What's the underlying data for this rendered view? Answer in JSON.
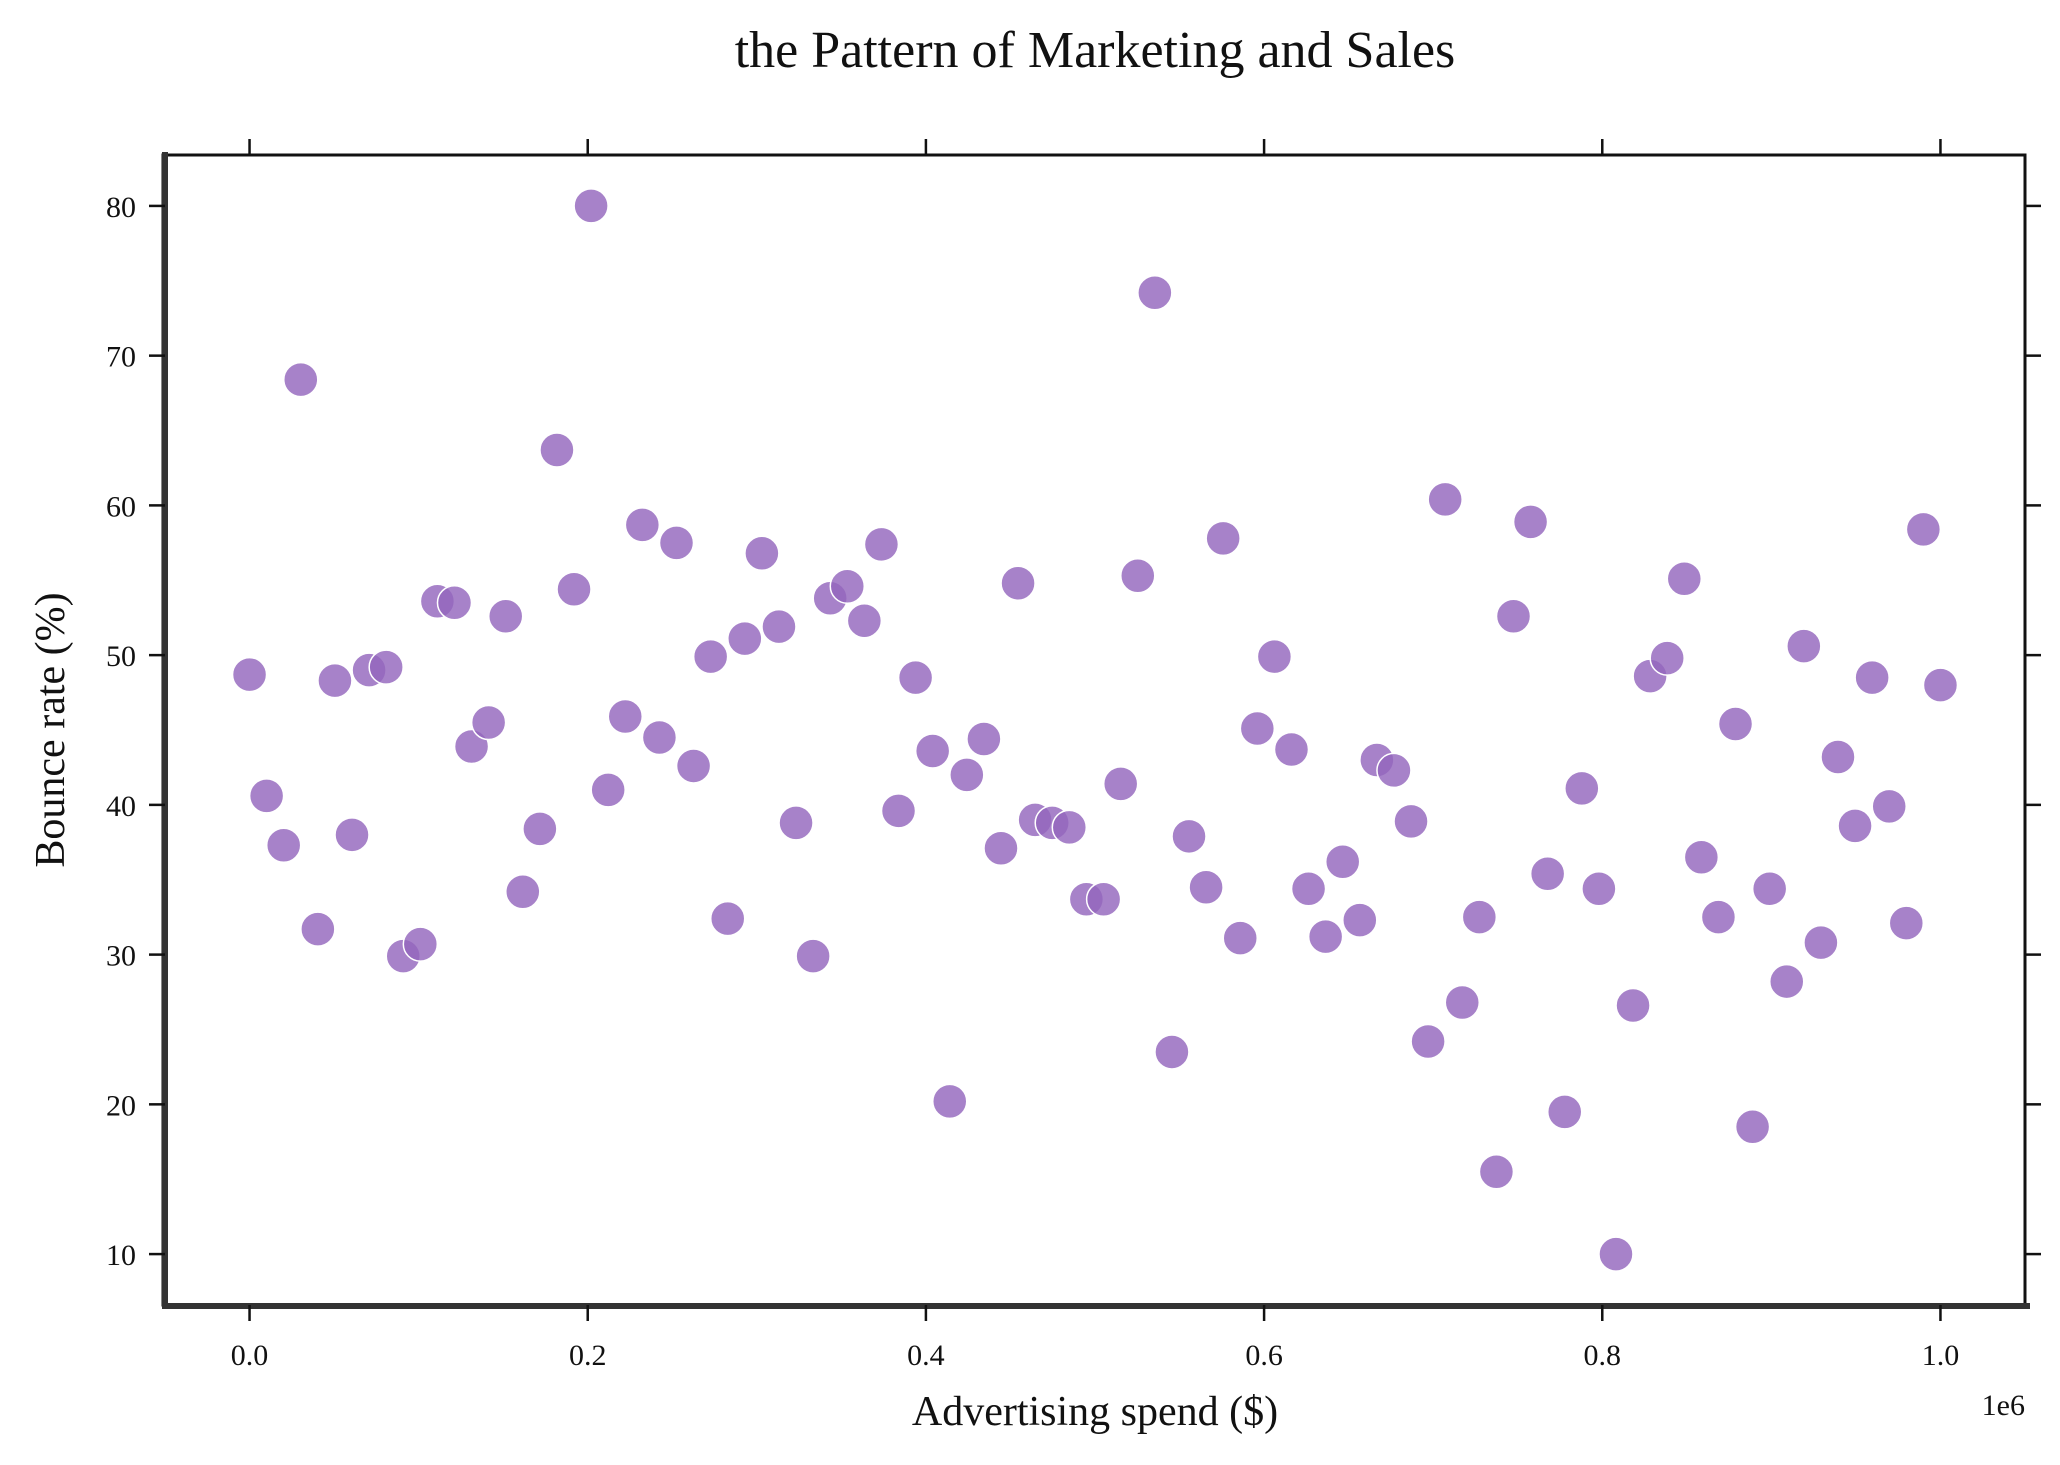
{
  "chart_data": {
    "type": "scatter",
    "title": "the Pattern of Marketing and Sales",
    "xlabel": "Advertising spend ($)",
    "ylabel": "Bounce rate (%)",
    "x_scale_label": "1e6",
    "xlim": [
      -0.05,
      1.05
    ],
    "ylim": [
      6.6,
      83.4
    ],
    "x_ticks": [
      0.0,
      0.2,
      0.4,
      0.6,
      0.8,
      1.0
    ],
    "x_tick_labels": [
      "0.0",
      "0.2",
      "0.4",
      "0.6",
      "0.8",
      "1.0"
    ],
    "y_ticks": [
      10,
      20,
      30,
      40,
      50,
      60,
      70,
      80
    ],
    "y_tick_labels": [
      "10",
      "20",
      "30",
      "40",
      "50",
      "60",
      "70",
      "80"
    ],
    "grid": false,
    "series": [
      {
        "color": "#9467bd",
        "x": [
          0.0,
          0.0101,
          0.0202,
          0.0303,
          0.0404,
          0.0505,
          0.0606,
          0.0707,
          0.0808,
          0.0909,
          0.101,
          0.1111,
          0.1212,
          0.1313,
          0.1414,
          0.1515,
          0.1616,
          0.1717,
          0.1818,
          0.1919,
          0.202,
          0.2121,
          0.2222,
          0.2323,
          0.2424,
          0.2525,
          0.2626,
          0.2727,
          0.2828,
          0.2929,
          0.303,
          0.3131,
          0.3232,
          0.3333,
          0.3434,
          0.3535,
          0.3636,
          0.3737,
          0.3838,
          0.3939,
          0.404,
          0.4141,
          0.4242,
          0.4343,
          0.4444,
          0.4545,
          0.4646,
          0.4747,
          0.4848,
          0.4949,
          0.5051,
          0.5152,
          0.5253,
          0.5354,
          0.5455,
          0.5556,
          0.5657,
          0.5758,
          0.5859,
          0.596,
          0.6061,
          0.6162,
          0.6263,
          0.6364,
          0.6465,
          0.6566,
          0.6667,
          0.6768,
          0.6869,
          0.697,
          0.7071,
          0.7172,
          0.7273,
          0.7374,
          0.7475,
          0.7576,
          0.7677,
          0.7778,
          0.7879,
          0.798,
          0.8081,
          0.8182,
          0.8283,
          0.8384,
          0.8485,
          0.8586,
          0.8687,
          0.8788,
          0.8889,
          0.899,
          0.9091,
          0.9192,
          0.9293,
          0.9394,
          0.9495,
          0.9596,
          0.9697,
          0.9798,
          0.9899,
          1.0
        ],
        "y": [
          48.7,
          40.6,
          37.3,
          68.4,
          31.7,
          48.3,
          38.0,
          49.0,
          49.2,
          29.9,
          30.7,
          53.6,
          53.5,
          43.9,
          45.5,
          52.6,
          34.2,
          38.4,
          63.7,
          54.4,
          80.0,
          41.0,
          45.9,
          58.7,
          44.5,
          57.5,
          42.6,
          49.9,
          32.4,
          51.1,
          56.8,
          51.9,
          38.8,
          29.9,
          53.8,
          54.6,
          52.3,
          57.4,
          39.6,
          48.5,
          43.6,
          20.2,
          42.0,
          44.4,
          37.1,
          54.8,
          39.0,
          38.8,
          38.5,
          33.7,
          33.7,
          41.4,
          55.3,
          74.2,
          23.5,
          37.9,
          34.5,
          57.8,
          31.1,
          45.1,
          49.9,
          43.7,
          34.4,
          31.2,
          36.2,
          32.3,
          43.0,
          42.3,
          38.9,
          24.2,
          60.4,
          26.8,
          32.5,
          15.5,
          52.6,
          58.9,
          35.4,
          19.5,
          41.1,
          34.4,
          10.0,
          26.6,
          48.6,
          49.8,
          55.1,
          36.5,
          32.5,
          45.4,
          18.5,
          34.4,
          28.2,
          50.6,
          30.8,
          43.2,
          38.6,
          48.5,
          39.9,
          32.1,
          58.4,
          48.0
        ]
      }
    ]
  }
}
